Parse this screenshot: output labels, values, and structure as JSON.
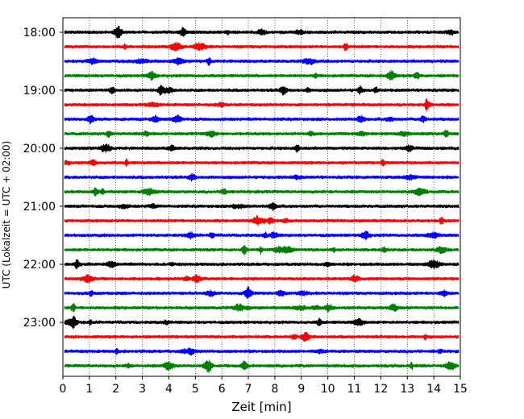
{
  "chart_data": {
    "type": "line",
    "title": "",
    "xlabel": "Zeit  [min]",
    "ylabel": "UTC (Lokalzeit = UTC + 02:00)",
    "xlim": [
      0,
      15
    ],
    "x_ticks": [
      "0",
      "1",
      "2",
      "3",
      "4",
      "5",
      "6",
      "7",
      "8",
      "9",
      "10",
      "11",
      "12",
      "13",
      "14",
      "15"
    ],
    "y_ticks": [
      "18:00",
      "19:00",
      "20:00",
      "21:00",
      "22:00",
      "23:00"
    ],
    "grid": "vertical dotted at each minute",
    "trace_colors": [
      "#000000",
      "#ff0000",
      "#0000ff",
      "#008000"
    ],
    "series": [
      {
        "start": "18:00",
        "color": "#000000"
      },
      {
        "start": "18:15",
        "color": "#ff0000"
      },
      {
        "start": "18:30",
        "color": "#0000ff"
      },
      {
        "start": "18:45",
        "color": "#008000"
      },
      {
        "start": "19:00",
        "color": "#000000"
      },
      {
        "start": "19:15",
        "color": "#ff0000"
      },
      {
        "start": "19:30",
        "color": "#0000ff"
      },
      {
        "start": "19:45",
        "color": "#008000"
      },
      {
        "start": "20:00",
        "color": "#000000"
      },
      {
        "start": "20:15",
        "color": "#ff0000"
      },
      {
        "start": "20:30",
        "color": "#0000ff"
      },
      {
        "start": "20:45",
        "color": "#008000"
      },
      {
        "start": "21:00",
        "color": "#000000"
      },
      {
        "start": "21:15",
        "color": "#ff0000"
      },
      {
        "start": "21:30",
        "color": "#0000ff"
      },
      {
        "start": "21:45",
        "color": "#008000"
      },
      {
        "start": "22:00",
        "color": "#000000"
      },
      {
        "start": "22:15",
        "color": "#ff0000"
      },
      {
        "start": "22:30",
        "color": "#0000ff"
      },
      {
        "start": "22:45",
        "color": "#008000"
      },
      {
        "start": "23:00",
        "color": "#000000"
      },
      {
        "start": "23:15",
        "color": "#ff0000"
      },
      {
        "start": "23:30",
        "color": "#0000ff"
      },
      {
        "start": "23:45",
        "color": "#008000"
      }
    ]
  }
}
